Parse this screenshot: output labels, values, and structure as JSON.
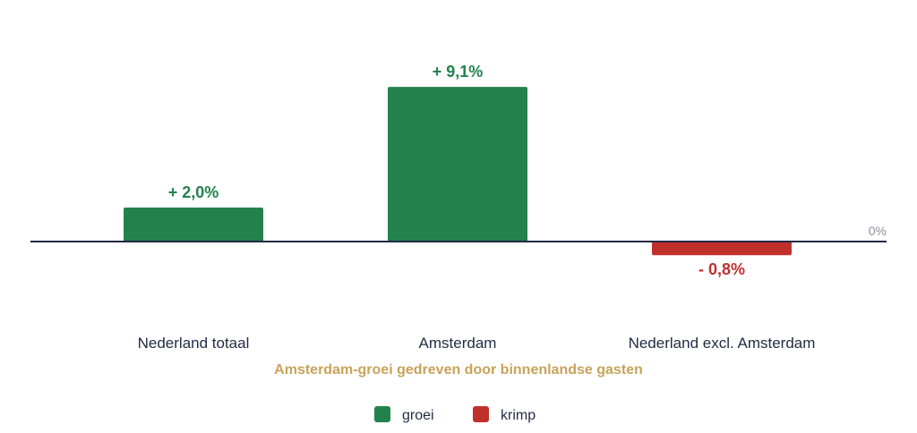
{
  "colors": {
    "growth": "#23824b",
    "shrink": "#c0302b",
    "axis": "#1f2a44",
    "caption": "#c9a35a"
  },
  "chart_data": {
    "type": "bar",
    "categories": [
      "Nederland totaal",
      "Amsterdam",
      "Nederland excl. Amsterdam"
    ],
    "values": [
      2.0,
      9.1,
      -0.8
    ],
    "data_labels": [
      "+ 2,0%",
      "+ 9,1%",
      "- 0,8%"
    ],
    "zero_label": "0%",
    "caption": "Amsterdam-groei gedreven door binnenlandse gasten",
    "ylim": [
      -3.5,
      10.5
    ],
    "grid": false,
    "legend_position": "bottom",
    "legend": [
      {
        "label": "groei",
        "color_key": "growth"
      },
      {
        "label": "krimp",
        "color_key": "shrink"
      }
    ]
  }
}
